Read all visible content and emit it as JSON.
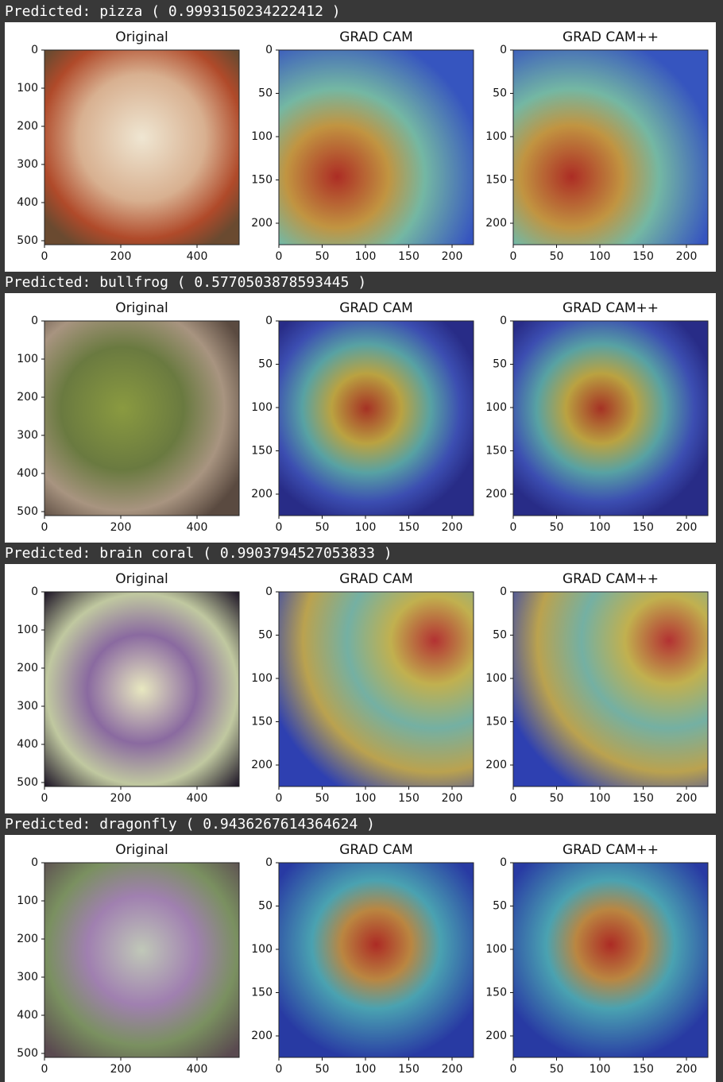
{
  "cells": [
    {
      "prediction": "Predicted: pizza ( 0.9993150234222412 )",
      "panels": [
        {
          "title": "Original",
          "xticks": [
            0,
            200,
            400
          ],
          "yticks": [
            0,
            100,
            200,
            300,
            400,
            500
          ]
        },
        {
          "title": "GRAD CAM",
          "xticks": [
            0,
            50,
            100,
            150,
            200
          ],
          "yticks": [
            0,
            50,
            100,
            150,
            200
          ]
        },
        {
          "title": "GRAD CAM++",
          "xticks": [
            0,
            50,
            100,
            150,
            200
          ],
          "yticks": [
            0,
            50,
            100,
            150,
            200
          ]
        }
      ]
    },
    {
      "prediction": "Predicted: bullfrog ( 0.5770503878593445 )",
      "panels": [
        {
          "title": "Original",
          "xticks": [
            0,
            200,
            400
          ],
          "yticks": [
            0,
            100,
            200,
            300,
            400,
            500
          ]
        },
        {
          "title": "GRAD CAM",
          "xticks": [
            0,
            50,
            100,
            150,
            200
          ],
          "yticks": [
            0,
            50,
            100,
            150,
            200
          ]
        },
        {
          "title": "GRAD CAM++",
          "xticks": [
            0,
            50,
            100,
            150,
            200
          ],
          "yticks": [
            0,
            50,
            100,
            150,
            200
          ]
        }
      ]
    },
    {
      "prediction": "Predicted: brain coral ( 0.9903794527053833 )",
      "panels": [
        {
          "title": "Original",
          "xticks": [
            0,
            200,
            400
          ],
          "yticks": [
            0,
            100,
            200,
            300,
            400,
            500
          ]
        },
        {
          "title": "GRAD CAM",
          "xticks": [
            0,
            50,
            100,
            150,
            200
          ],
          "yticks": [
            0,
            50,
            100,
            150,
            200
          ]
        },
        {
          "title": "GRAD CAM++",
          "xticks": [
            0,
            50,
            100,
            150,
            200
          ],
          "yticks": [
            0,
            50,
            100,
            150,
            200
          ]
        }
      ]
    },
    {
      "prediction": "Predicted: dragonfly ( 0.9436267614364624 )",
      "panels": [
        {
          "title": "Original",
          "xticks": [
            0,
            200,
            400
          ],
          "yticks": [
            0,
            100,
            200,
            300,
            400,
            500
          ]
        },
        {
          "title": "GRAD CAM",
          "xticks": [
            0,
            50,
            100,
            150,
            200
          ],
          "yticks": [
            0,
            50,
            100,
            150,
            200
          ]
        },
        {
          "title": "GRAD CAM++",
          "xticks": [
            0,
            50,
            100,
            150,
            200
          ],
          "yticks": [
            0,
            50,
            100,
            150,
            200
          ]
        }
      ]
    }
  ]
}
